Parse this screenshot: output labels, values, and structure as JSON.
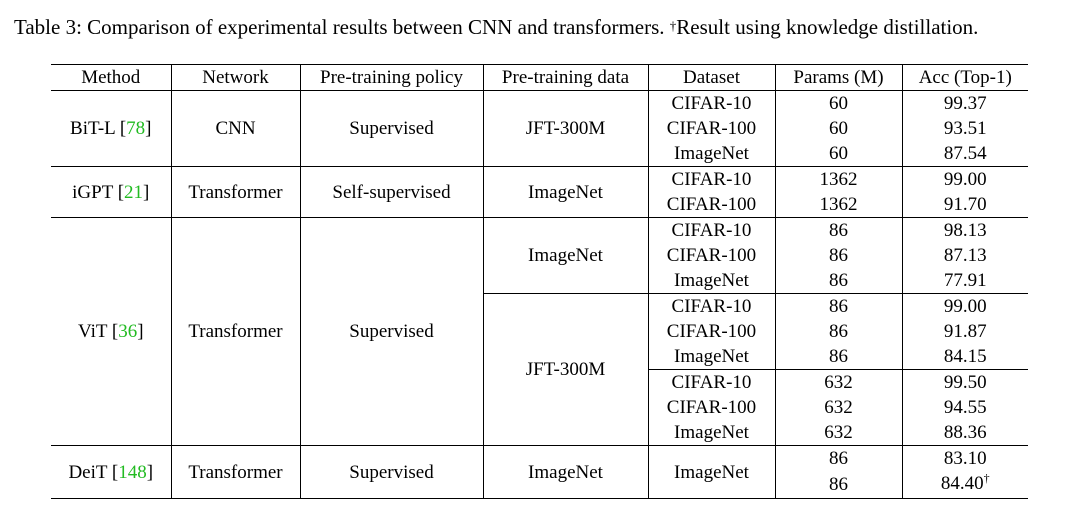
{
  "caption": {
    "prefix": "Table 3: Comparison of experimental results between CNN and transformers. ",
    "dagger": "†",
    "suffix": "Result using knowledge distillation."
  },
  "headers": [
    "Method",
    "Network",
    "Pre-training policy",
    "Pre-training data",
    "Dataset",
    "Params (M)",
    "Acc (Top-1)"
  ],
  "groups": [
    {
      "method": "BiT-L",
      "cite": "78",
      "network": "CNN",
      "policy": "Supervised",
      "pretrain": [
        {
          "data": "JFT-300M",
          "rows": [
            {
              "dataset": "CIFAR-10",
              "params": "60",
              "acc": "99.37"
            },
            {
              "dataset": "CIFAR-100",
              "params": "60",
              "acc": "93.51"
            },
            {
              "dataset": "ImageNet",
              "params": "60",
              "acc": "87.54"
            }
          ]
        }
      ]
    },
    {
      "method": "iGPT",
      "cite": "21",
      "network": "Transformer",
      "policy": "Self-supervised",
      "pretrain": [
        {
          "data": "ImageNet",
          "rows": [
            {
              "dataset": "CIFAR-10",
              "params": "1362",
              "acc": "99.00"
            },
            {
              "dataset": "CIFAR-100",
              "params": "1362",
              "acc": "91.70"
            }
          ]
        }
      ]
    },
    {
      "method": "ViT",
      "cite": "36",
      "network": "Transformer",
      "policy": "Supervised",
      "pretrain": [
        {
          "data": "ImageNet",
          "rows": [
            {
              "dataset": "CIFAR-10",
              "params": "86",
              "acc": "98.13"
            },
            {
              "dataset": "CIFAR-100",
              "params": "86",
              "acc": "87.13"
            },
            {
              "dataset": "ImageNet",
              "params": "86",
              "acc": "77.91"
            }
          ]
        },
        {
          "data": "JFT-300M",
          "rows": [
            {
              "dataset": "CIFAR-10",
              "params": "86",
              "acc": "99.00"
            },
            {
              "dataset": "CIFAR-100",
              "params": "86",
              "acc": "91.87"
            },
            {
              "dataset": "ImageNet",
              "params": "86",
              "acc": "84.15"
            },
            {
              "dataset": "CIFAR-10",
              "params": "632",
              "acc": "99.50",
              "sep": true
            },
            {
              "dataset": "CIFAR-100",
              "params": "632",
              "acc": "94.55"
            },
            {
              "dataset": "ImageNet",
              "params": "632",
              "acc": "88.36"
            }
          ]
        }
      ]
    },
    {
      "method": "DeiT",
      "cite": "148",
      "network": "Transformer",
      "policy": "Supervised",
      "pretrain": [
        {
          "data": "ImageNet",
          "dataset_merged": "ImageNet",
          "rows": [
            {
              "params": "86",
              "acc": "83.10"
            },
            {
              "params": "86",
              "acc": "84.40",
              "dagger": "†"
            }
          ]
        }
      ]
    }
  ]
}
